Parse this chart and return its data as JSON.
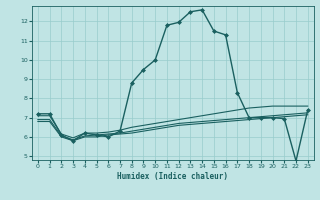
{
  "background_color": "#c0e4e4",
  "grid_color": "#98cccc",
  "line_color": "#1a6060",
  "xlabel": "Humidex (Indice chaleur)",
  "xlim": [
    -0.5,
    23.5
  ],
  "ylim": [
    4.8,
    12.8
  ],
  "xticks": [
    0,
    1,
    2,
    3,
    4,
    5,
    6,
    7,
    8,
    9,
    10,
    11,
    12,
    13,
    14,
    15,
    16,
    17,
    18,
    19,
    20,
    21,
    22,
    23
  ],
  "yticks": [
    5,
    6,
    7,
    8,
    9,
    10,
    11,
    12
  ],
  "series": [
    {
      "x": [
        0,
        1,
        2,
        3,
        4,
        5,
        6,
        7,
        8,
        9,
        10,
        11,
        12,
        13,
        14,
        15,
        16,
        17,
        18,
        19,
        20,
        21,
        22,
        23
      ],
      "y": [
        7.2,
        7.2,
        6.1,
        5.8,
        6.2,
        6.1,
        6.0,
        6.3,
        8.8,
        9.5,
        10.0,
        11.8,
        11.95,
        12.5,
        12.6,
        11.5,
        11.3,
        8.3,
        7.0,
        7.0,
        7.0,
        6.95,
        4.75,
        7.4
      ],
      "marker": "D",
      "markersize": 2.0,
      "linewidth": 1.0
    },
    {
      "x": [
        0,
        1,
        2,
        3,
        4,
        5,
        6,
        7,
        8,
        9,
        10,
        11,
        12,
        13,
        14,
        15,
        16,
        17,
        18,
        19,
        20,
        21,
        22,
        23
      ],
      "y": [
        7.1,
        7.1,
        6.15,
        5.95,
        6.2,
        6.2,
        6.25,
        6.35,
        6.5,
        6.6,
        6.7,
        6.8,
        6.9,
        7.0,
        7.1,
        7.2,
        7.3,
        7.4,
        7.5,
        7.55,
        7.6,
        7.6,
        7.6,
        7.6
      ],
      "marker": null,
      "linewidth": 0.8
    },
    {
      "x": [
        0,
        1,
        2,
        3,
        4,
        5,
        6,
        7,
        8,
        9,
        10,
        11,
        12,
        13,
        14,
        15,
        16,
        17,
        18,
        19,
        20,
        21,
        22,
        23
      ],
      "y": [
        6.9,
        6.9,
        6.05,
        5.85,
        6.05,
        6.1,
        6.15,
        6.2,
        6.3,
        6.4,
        6.5,
        6.6,
        6.7,
        6.75,
        6.8,
        6.85,
        6.9,
        6.95,
        7.0,
        7.05,
        7.1,
        7.15,
        7.2,
        7.25
      ],
      "marker": null,
      "linewidth": 0.8
    },
    {
      "x": [
        0,
        1,
        2,
        3,
        4,
        5,
        6,
        7,
        8,
        9,
        10,
        11,
        12,
        13,
        14,
        15,
        16,
        17,
        18,
        19,
        20,
        21,
        22,
        23
      ],
      "y": [
        6.8,
        6.8,
        6.0,
        5.8,
        6.0,
        6.0,
        6.1,
        6.15,
        6.2,
        6.3,
        6.4,
        6.5,
        6.6,
        6.65,
        6.7,
        6.75,
        6.8,
        6.85,
        6.9,
        6.95,
        7.0,
        7.05,
        7.1,
        7.15
      ],
      "marker": null,
      "linewidth": 0.8
    }
  ]
}
